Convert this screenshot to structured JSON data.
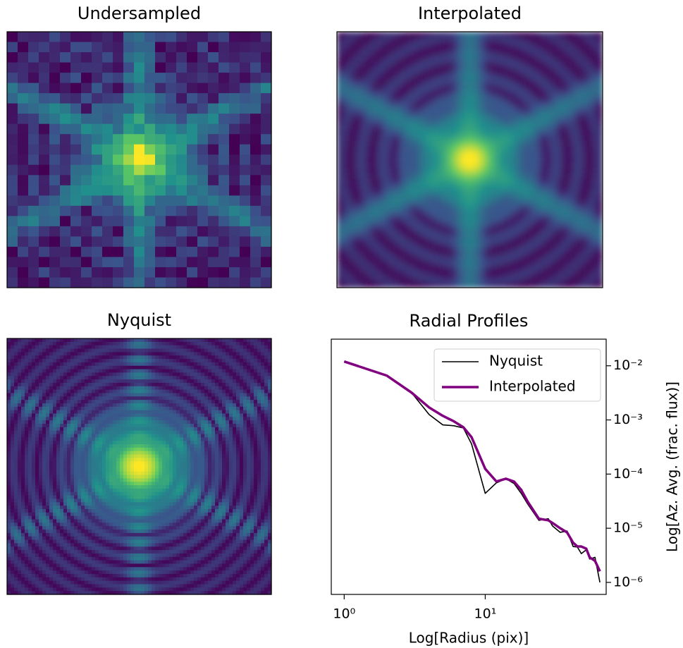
{
  "chart_data": [
    {
      "type": "image",
      "title": "Undersampled"
    },
    {
      "type": "image",
      "title": "Interpolated"
    },
    {
      "type": "image",
      "title": "Nyquist"
    },
    {
      "type": "line",
      "title": "Radial Profiles",
      "xlabel": "Log[Radius (pix)]",
      "ylabel": "Log[Az. Avg. (frac. flux)]",
      "xscale": "log",
      "yscale": "log",
      "y_axis_side": "right",
      "legend": "upper right",
      "xlim": [
        0.81,
        72
      ],
      "ylim": [
        6e-07,
        0.031
      ],
      "xticks": [
        {
          "value": 1,
          "label": "10⁰"
        },
        {
          "value": 10,
          "label": "10¹"
        }
      ],
      "yticks": [
        {
          "value": 1e-06,
          "label": "10⁻⁶"
        },
        {
          "value": 1e-05,
          "label": "10⁻⁵"
        },
        {
          "value": 0.0001,
          "label": "10⁻⁴"
        },
        {
          "value": 0.001,
          "label": "10⁻³"
        },
        {
          "value": 0.01,
          "label": "10⁻²"
        }
      ],
      "x": [
        1,
        2,
        3,
        4,
        5,
        6,
        7,
        8,
        10,
        12,
        14,
        16,
        18,
        20,
        24,
        28,
        30,
        34,
        38,
        42,
        45,
        48,
        52,
        55,
        60,
        65
      ],
      "series": [
        {
          "name": "Nyquist",
          "color": "#000000",
          "linewidth": 1.6,
          "values": [
            0.012,
            0.0066,
            0.0032,
            0.00126,
            0.00081,
            0.00078,
            0.00071,
            0.00036,
            4.4e-05,
            6.9e-05,
            8.2e-05,
            6.7e-05,
            4.4e-05,
            2.8e-05,
            1.4e-05,
            1.5e-05,
            1.1e-05,
            8.4e-06,
            8.9e-06,
            4.6e-06,
            4.5e-06,
            3.4e-06,
            4e-06,
            2.7e-06,
            2.9e-06,
            1e-06
          ]
        },
        {
          "name": "Interpolated",
          "color": "#800080",
          "linewidth": 3.5,
          "values": [
            0.012,
            0.0066,
            0.0032,
            0.0017,
            0.00119,
            0.00094,
            0.00073,
            0.00048,
            0.000125,
            7.3e-05,
            8.2e-05,
            7.3e-05,
            5.1e-05,
            3.1e-05,
            1.5e-05,
            1.4e-05,
            1.25e-05,
            1e-05,
            8.4e-06,
            5.4e-06,
            4.6e-06,
            4.6e-06,
            4.2e-06,
            2.9e-06,
            2.5e-06,
            1.6e-06
          ]
        }
      ]
    }
  ]
}
